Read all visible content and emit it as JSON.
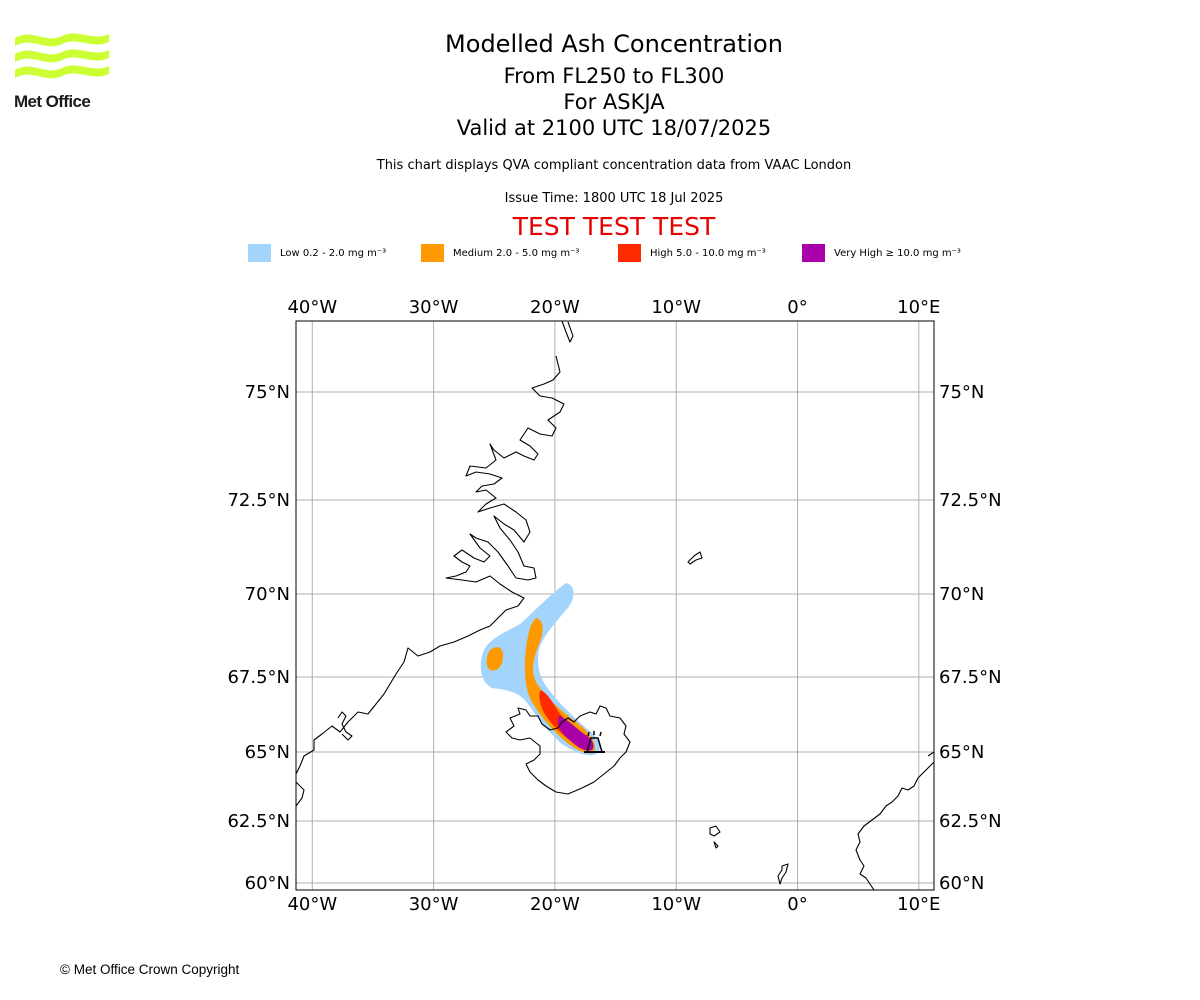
{
  "header": {
    "title": "Modelled Ash Concentration",
    "subtitle_1": "From FL250 to FL300",
    "subtitle_2": "For ASKJA",
    "subtitle_3": "Valid at 2100 UTC 18/07/2025",
    "note": "This chart displays QVA compliant concentration data from VAAC London",
    "issue_time": "Issue Time: 1800 UTC 18 Jul 2025",
    "test_banner": "TEST TEST TEST"
  },
  "logo": {
    "text": "Met Office",
    "icon": "met-office-waves",
    "color": "#ccff33"
  },
  "legend": [
    {
      "label": "Low 0.2 - 2.0 mg m⁻³",
      "color": "#a3d4fc"
    },
    {
      "label": "Medium 2.0 - 5.0 mg m⁻³",
      "color": "#ff9900"
    },
    {
      "label": "High 5.0 - 10.0 mg m⁻³",
      "color": "#ff2a00"
    },
    {
      "label": "Very High ≥ 10.0 mg m⁻³",
      "color": "#aa00aa"
    }
  ],
  "map": {
    "lon_ticks": [
      {
        "value": -40,
        "label": "40°W"
      },
      {
        "value": -30,
        "label": "30°W"
      },
      {
        "value": -20,
        "label": "20°W"
      },
      {
        "value": -10,
        "label": "10°W"
      },
      {
        "value": 0,
        "label": "0°"
      },
      {
        "value": 10,
        "label": "10°E"
      }
    ],
    "lat_ticks": [
      {
        "value": 75,
        "label": "75°N"
      },
      {
        "value": 72.5,
        "label": "72.5°N"
      },
      {
        "value": 70,
        "label": "70°N"
      },
      {
        "value": 67.5,
        "label": "67.5°N"
      },
      {
        "value": 65,
        "label": "65°N"
      },
      {
        "value": 62.5,
        "label": "62.5°N"
      },
      {
        "value": 60,
        "label": "60°N"
      }
    ],
    "volcano": {
      "name": "ASKJA",
      "lat": 65.03,
      "lon": -16.75,
      "icon": "volcano-icon"
    }
  },
  "footer": {
    "copyright": "© Met Office Crown Copyright"
  }
}
